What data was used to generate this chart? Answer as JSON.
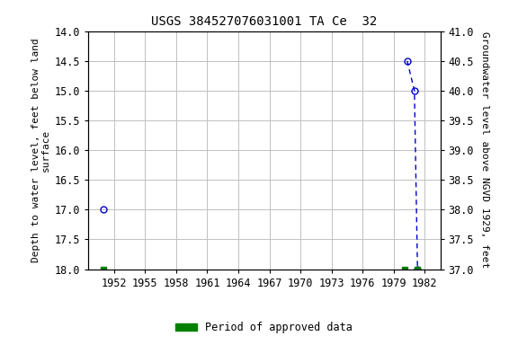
{
  "title": "USGS 384527076031001 TA Ce  32",
  "ylabel_left": "Depth to water level, feet below land\nsurface",
  "ylabel_right": "Groundwater level above NGVD 1929, feet",
  "xlim": [
    1949.5,
    1983.5
  ],
  "ylim_left": [
    14.0,
    18.0
  ],
  "ylim_right": [
    37.0,
    41.0
  ],
  "xticks": [
    1952,
    1955,
    1958,
    1961,
    1964,
    1967,
    1970,
    1973,
    1976,
    1979,
    1982
  ],
  "yticks_left": [
    14.0,
    14.5,
    15.0,
    15.5,
    16.0,
    16.5,
    17.0,
    17.5,
    18.0
  ],
  "yticks_right": [
    37.0,
    37.5,
    38.0,
    38.5,
    39.0,
    39.5,
    40.0,
    40.5,
    41.0
  ],
  "blue_circle_points": [
    [
      1951.0,
      17.0
    ],
    [
      1980.3,
      14.5
    ],
    [
      1981.0,
      15.0
    ],
    [
      1981.3,
      18.0
    ]
  ],
  "dashed_line_points": [
    [
      1980.3,
      14.5
    ],
    [
      1981.0,
      15.0
    ],
    [
      1981.3,
      18.0
    ]
  ],
  "green_square_points_x": [
    1951.0,
    1980.1,
    1981.3
  ],
  "green_square_points_y": [
    18.0,
    18.0,
    18.0
  ],
  "point_color": "#0000cc",
  "line_color": "#0000cc",
  "green_color": "#008000",
  "bg_color": "#ffffff",
  "grid_color": "#c0c0c0",
  "title_fontsize": 10,
  "label_fontsize": 8,
  "tick_fontsize": 8.5,
  "legend_label": "Period of approved data"
}
